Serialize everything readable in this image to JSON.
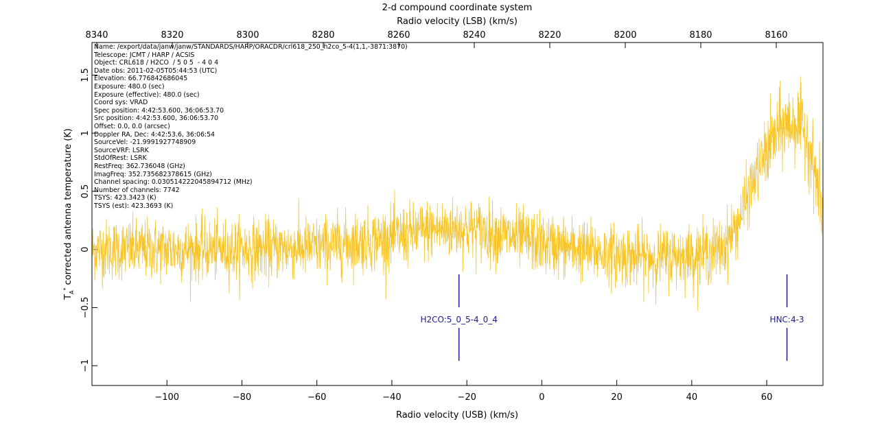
{
  "chart_data": {
    "type": "line",
    "title": "2-d compound coordinate system",
    "xlabel_top": "Radio velocity (LSB) (km/s)",
    "xlabel": "Radio velocity (USB) (km/s)",
    "ylabel": "T",
    "ylabel_sub": "A",
    "ylabel_sup": "*",
    "ylabel_rest": "corrected antenna temperature (K)",
    "xlim": [
      -120,
      75
    ],
    "ylim": [
      -1.17,
      1.78
    ],
    "xticks": [
      -100,
      -80,
      -60,
      -40,
      -20,
      0,
      20,
      40,
      60
    ],
    "xtick_labels": [
      "−100",
      "−80",
      "−60",
      "−40",
      "−20",
      "0",
      "20",
      "40",
      "60"
    ],
    "top_xticks": [
      8340,
      8320,
      8300,
      8280,
      8260,
      8240,
      8220,
      8200,
      8180,
      8160
    ],
    "top_xtick_labels": [
      "8340",
      "8320",
      "8300",
      "8280",
      "8260",
      "8240",
      "8220",
      "8200",
      "8180",
      "8160"
    ],
    "yticks": [
      -1,
      -0.5,
      0,
      0.5,
      1,
      1.5
    ],
    "ytick_labels": [
      "−1",
      "−0.5",
      "0",
      "0.5",
      "1",
      "1.5"
    ],
    "series": [
      {
        "color": "#f7c52a",
        "noise_sigma_K": 0.13,
        "baseline": {
          "x": [
            -120,
            -100,
            -80,
            -60,
            -40,
            -30,
            -20,
            -10,
            0,
            10,
            20,
            30,
            40,
            48,
            52,
            56,
            60,
            64,
            68,
            71,
            73,
            75
          ],
          "y": [
            0.0,
            0.0,
            0.0,
            0.02,
            0.1,
            0.17,
            0.18,
            0.12,
            0.05,
            0.0,
            -0.05,
            -0.07,
            -0.05,
            0.0,
            0.2,
            0.55,
            0.85,
            1.05,
            1.1,
            0.95,
            0.65,
            0.3
          ]
        }
      }
    ],
    "line_markers": [
      {
        "label": "H2CO:5_0_5-4_0_4",
        "x": -22.1,
        "color": "#1a1a8c"
      },
      {
        "label": "HNC:4-3",
        "x": 65.4,
        "color": "#1a1a8c"
      }
    ],
    "header": [
      "Name: /export/data/janw/janw/STANDARDS/HARP/ORACDR/crl618_250_h2co_5-4(1,1,-3871:3870)",
      "Telescope: JCMT / HARP / ACSIS",
      "Object: CRL618 / H2CO  / 5 0 5  - 4 0 4",
      "Date obs: 2011-02-05T05:44:53 (UTC)",
      "Elevation: 66.776842686045",
      "Exposure: 480.0 (sec)",
      "Exposure (effective): 480.0 (sec)",
      "Coord sys: VRAD",
      "Spec position: 4:42:53.600, 36:06:53.70",
      "Src position: 4:42:53.600, 36:06:53.70",
      "Offset: 0.0, 0.0 (arcsec)",
      "Doppler RA, Dec: 4:42:53.6, 36:06:54",
      "SourceVel: -21.9991927748909",
      "SourceVRF: LSRK",
      "StdOfRest: LSRK",
      "RestFreq: 362.736048 (GHz)",
      "ImagFreq: 352.735682378615 (GHz)",
      "Channel spacing: 0.030514222045894712 (MHz)",
      "Number of channels: 7742",
      "TSYS: 423.3423 (K)",
      "TSYS (est): 423.3693 (K)"
    ]
  }
}
